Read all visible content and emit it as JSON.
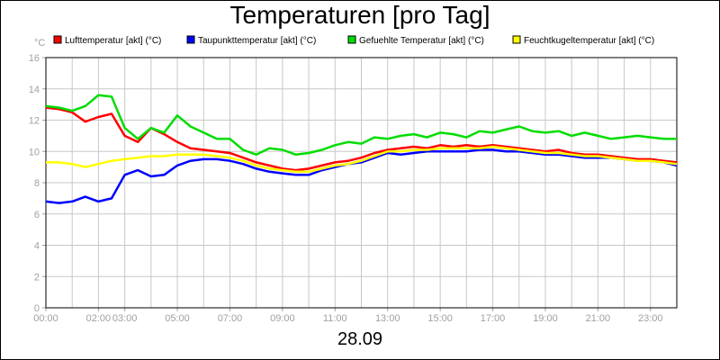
{
  "chart_data": {
    "type": "line",
    "title": "Temperaturen [pro Tag]",
    "xlabel": "28.09",
    "ylabel": "°C",
    "ylim": [
      0,
      16
    ],
    "xlim": [
      0,
      24
    ],
    "x_ticks": [
      {
        "h": 0,
        "label": "00:00"
      },
      {
        "h": 2,
        "label": "02:00"
      },
      {
        "h": 3,
        "label": "03:00"
      },
      {
        "h": 5,
        "label": "05:00"
      },
      {
        "h": 7,
        "label": "07:00"
      },
      {
        "h": 9,
        "label": "09:00"
      },
      {
        "h": 11,
        "label": "11:00"
      },
      {
        "h": 13,
        "label": "13:00"
      },
      {
        "h": 15,
        "label": "15:00"
      },
      {
        "h": 17,
        "label": "17:00"
      },
      {
        "h": 19,
        "label": "19:00"
      },
      {
        "h": 21,
        "label": "21:00"
      },
      {
        "h": 23,
        "label": "23:00"
      }
    ],
    "y_ticks": [
      0,
      2,
      4,
      6,
      8,
      10,
      12,
      14,
      16
    ],
    "grid": true,
    "x": [
      0,
      0.5,
      1,
      1.5,
      2,
      2.5,
      3,
      3.5,
      4,
      4.5,
      5,
      5.5,
      6,
      6.5,
      7,
      7.5,
      8,
      8.5,
      9,
      9.5,
      10,
      10.5,
      11,
      11.5,
      12,
      12.5,
      13,
      13.5,
      14,
      14.5,
      15,
      15.5,
      16,
      16.5,
      17,
      17.5,
      18,
      18.5,
      19,
      19.5,
      20,
      20.5,
      21,
      21.5,
      22,
      22.5,
      23,
      23.5,
      24
    ],
    "series": [
      {
        "name": "Lufttemperatur [akt] (°C)",
        "color": "#ff0000",
        "values": [
          12.8,
          12.7,
          12.5,
          11.9,
          12.2,
          12.4,
          11.0,
          10.6,
          11.5,
          11.1,
          10.6,
          10.2,
          10.1,
          10.0,
          9.9,
          9.6,
          9.3,
          9.1,
          8.9,
          8.8,
          8.9,
          9.1,
          9.3,
          9.4,
          9.6,
          9.9,
          10.1,
          10.2,
          10.3,
          10.2,
          10.4,
          10.3,
          10.4,
          10.3,
          10.4,
          10.3,
          10.2,
          10.1,
          10.0,
          10.1,
          9.9,
          9.8,
          9.8,
          9.7,
          9.6,
          9.5,
          9.5,
          9.4,
          9.3
        ]
      },
      {
        "name": "Taupunkttemperatur [akt] (°C)",
        "color": "#0000ff",
        "values": [
          6.8,
          6.7,
          6.8,
          7.1,
          6.8,
          7.0,
          8.5,
          8.8,
          8.4,
          8.5,
          9.1,
          9.4,
          9.5,
          9.5,
          9.4,
          9.2,
          8.9,
          8.7,
          8.6,
          8.5,
          8.5,
          8.8,
          9.0,
          9.2,
          9.3,
          9.6,
          9.9,
          9.8,
          9.9,
          10.0,
          10.0,
          10.0,
          10.0,
          10.1,
          10.1,
          10.0,
          10.0,
          9.9,
          9.8,
          9.8,
          9.7,
          9.6,
          9.6,
          9.6,
          9.5,
          9.4,
          9.4,
          9.3,
          9.1
        ]
      },
      {
        "name": "Gefuehlte Temperatur [akt] (°C)",
        "color": "#00dd00",
        "values": [
          12.9,
          12.8,
          12.6,
          12.9,
          13.6,
          13.5,
          11.5,
          10.8,
          11.5,
          11.2,
          12.3,
          11.6,
          11.2,
          10.8,
          10.8,
          10.1,
          9.8,
          10.2,
          10.1,
          9.8,
          9.9,
          10.1,
          10.4,
          10.6,
          10.5,
          10.9,
          10.8,
          11.0,
          11.1,
          10.9,
          11.2,
          11.1,
          10.9,
          11.3,
          11.2,
          11.4,
          11.6,
          11.3,
          11.2,
          11.3,
          11.0,
          11.2,
          11.0,
          10.8,
          10.9,
          11.0,
          10.9,
          10.8,
          10.8
        ]
      },
      {
        "name": "Feuchtkugeltemperatur [akt] (°C)",
        "color": "#ffff00",
        "values": [
          9.3,
          9.3,
          9.2,
          9.0,
          9.2,
          9.4,
          9.5,
          9.6,
          9.7,
          9.7,
          9.8,
          9.8,
          9.8,
          9.7,
          9.6,
          9.4,
          9.1,
          8.9,
          8.8,
          8.7,
          8.7,
          8.9,
          9.1,
          9.2,
          9.4,
          9.7,
          10.0,
          10.0,
          10.1,
          10.1,
          10.2,
          10.2,
          10.2,
          10.2,
          10.3,
          10.2,
          10.1,
          10.0,
          9.9,
          9.9,
          9.8,
          9.7,
          9.7,
          9.6,
          9.5,
          9.4,
          9.4,
          9.3,
          9.2
        ]
      }
    ]
  }
}
